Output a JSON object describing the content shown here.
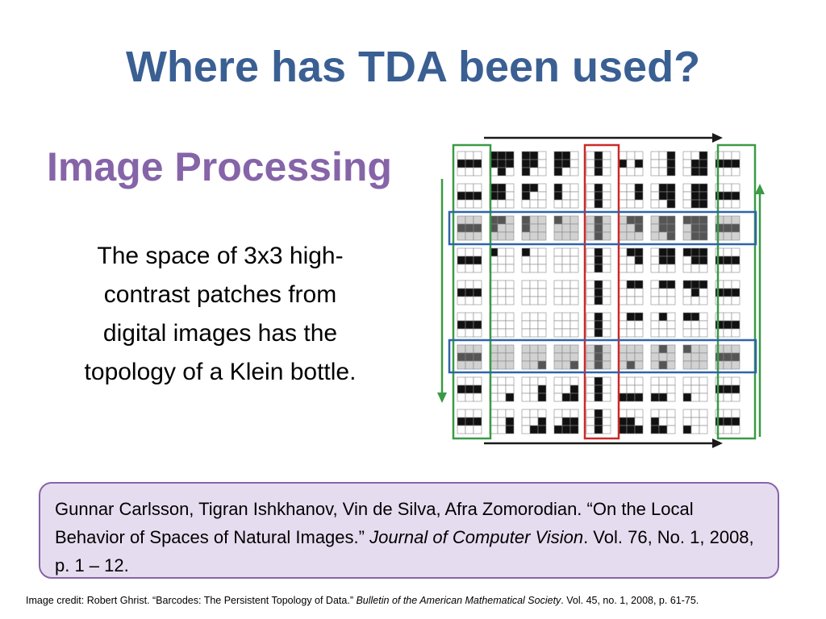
{
  "slide": {
    "title": "Where has TDA been used?",
    "subtitle": "Image Processing",
    "body": "The space of 3x3 high-contrast patches from digital images has the topology of a Klein bottle."
  },
  "citation": {
    "authors": "Gunnar Carlsson, Tigran Ishkhanov, Vin de Silva, Afra Zomorodian.",
    "article": "“On the Local Behavior of Spaces of Natural Images.”",
    "journal": "Journal of Computer Vision",
    "details": ". Vol. 76, No. 1, 2008, p. 1 – 12."
  },
  "credit": {
    "prefix": "Image credit: Robert Ghrist. “Barcodes: The Persistent Topology of Data.”",
    "journal": "Bulletin of the American Mathematical Society",
    "details": ". Vol. 45, no. 1, 2008, p. 61-75."
  },
  "figure": {
    "rows": 9,
    "cols": 9,
    "colors": {
      "black": "#111111",
      "dark": "#555555",
      "mid": "#9a9a9a",
      "light": "#d2d2d2",
      "white": "#ffffff",
      "green": "#3a9a45",
      "red": "#cc2a2a",
      "blue": "#2f65a8",
      "arrow": "#1a1a1a"
    },
    "icons": [
      "arrow-right-icon",
      "arrow-up-icon",
      "arrow-down-icon"
    ]
  }
}
